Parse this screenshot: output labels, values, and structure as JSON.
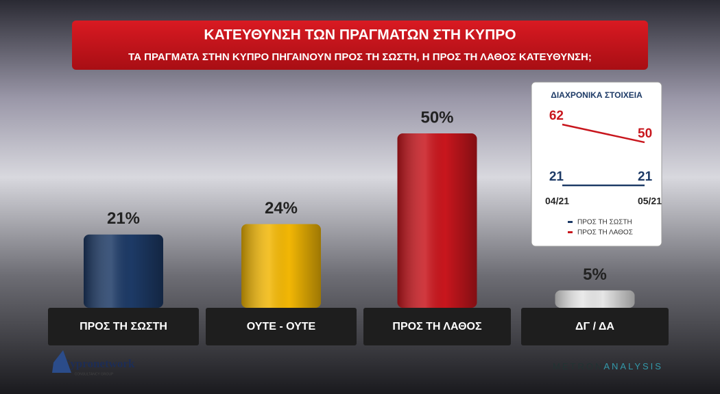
{
  "chart_data": [
    {
      "type": "bar",
      "title": "ΚΑΤΕΥΘΥΝΣΗ ΤΩΝ ΠΡΑΓΜΑΤΩΝ ΣΤΗ ΚΥΠΡΟ",
      "subtitle": "ΤΑ ΠΡΑΓΜΑΤΑ ΣΤΗΝ ΚΥΠΡΟ ΠΗΓΑΙΝΟΥΝ ΠΡΟΣ ΤΗ ΣΩΣΤΗ, Η ΠΡΟΣ ΤΗ ΛΑΘΟΣ ΚΑΤΕΥΘΥΝΣΗ;",
      "categories": [
        "ΠΡΟΣ ΤΗ ΣΩΣΤΗ",
        "ΟΥΤΕ - ΟΥΤΕ",
        "ΠΡΟΣ ΤΗ ΛΑΘΟΣ",
        "ΔΓ / ΔΑ"
      ],
      "values": [
        21,
        24,
        50,
        5
      ],
      "value_labels": [
        "21%",
        "24%",
        "50%",
        "5%"
      ],
      "colors": [
        "#1d3a66",
        "#f2b705",
        "#c8161d",
        "#e6e6e6"
      ]
    },
    {
      "type": "line",
      "title": "ΔΙΑΧΡΟΝΙΚΑ ΣΤΟΙΧΕΙΑ",
      "x": [
        "04/21",
        "05/21"
      ],
      "series": [
        {
          "name": "ΠΡΟΣ ΤΗ ΣΩΣΤΗ",
          "color": "#1d3a66",
          "values": [
            21,
            21
          ]
        },
        {
          "name": "ΠΡΟΣ ΤΗ ΛΑΘΟΣ",
          "color": "#c8161d",
          "values": [
            62,
            50
          ]
        }
      ]
    }
  ],
  "logos": {
    "left": "Cypronetwork",
    "left_sub": "CONSULTANCY GROUP",
    "right_a": "METRON",
    "right_b": "ANALYSIS"
  }
}
